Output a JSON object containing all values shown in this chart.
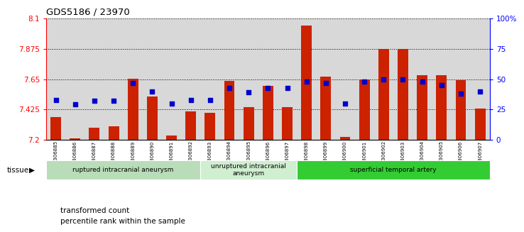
{
  "title": "GDS5186 / 23970",
  "samples": [
    "GSM1306885",
    "GSM1306886",
    "GSM1306887",
    "GSM1306888",
    "GSM1306889",
    "GSM1306890",
    "GSM1306891",
    "GSM1306892",
    "GSM1306893",
    "GSM1306894",
    "GSM1306895",
    "GSM1306896",
    "GSM1306897",
    "GSM1306898",
    "GSM1306899",
    "GSM1306900",
    "GSM1306901",
    "GSM1306902",
    "GSM1306903",
    "GSM1306904",
    "GSM1306905",
    "GSM1306906",
    "GSM1306907"
  ],
  "bar_values": [
    7.37,
    7.21,
    7.29,
    7.3,
    7.655,
    7.52,
    7.23,
    7.41,
    7.4,
    7.635,
    7.44,
    7.6,
    7.44,
    8.05,
    7.67,
    7.22,
    7.65,
    7.875,
    7.875,
    7.68,
    7.68,
    7.645,
    7.43
  ],
  "percentile_values": [
    33,
    29,
    32,
    32,
    47,
    40,
    30,
    33,
    33,
    43,
    39,
    43,
    43,
    48,
    47,
    30,
    48,
    50,
    50,
    48,
    45,
    38,
    40
  ],
  "y_min": 7.2,
  "y_max": 8.1,
  "y_ticks": [
    7.2,
    7.425,
    7.65,
    7.875,
    8.1
  ],
  "y_tick_labels": [
    "7.2",
    "7.425",
    "7.65",
    "7.875",
    "8.1"
  ],
  "right_y_ticks": [
    0,
    25,
    50,
    75,
    100
  ],
  "right_y_tick_labels": [
    "0",
    "25",
    "50",
    "75",
    "100%"
  ],
  "bar_color": "#cc2200",
  "dot_color": "#0000cc",
  "plot_bg_color": "#d8d8d8",
  "tissue_groups": [
    {
      "label": "ruptured intracranial aneurysm",
      "start": 0,
      "end": 8,
      "color": "#b8ddb8"
    },
    {
      "label": "unruptured intracranial\naneurysm",
      "start": 8,
      "end": 13,
      "color": "#d0eed0"
    },
    {
      "label": "superficial temporal artery",
      "start": 13,
      "end": 23,
      "color": "#33cc33"
    }
  ],
  "legend_items": [
    {
      "label": "transformed count",
      "color": "#cc2200"
    },
    {
      "label": "percentile rank within the sample",
      "color": "#0000cc"
    }
  ],
  "tissue_label": "tissue"
}
